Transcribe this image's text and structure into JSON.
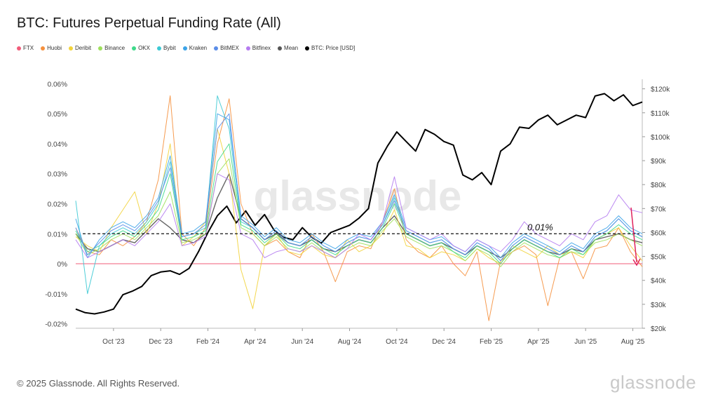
{
  "title": "BTC: Futures Perpetual Funding Rate (All)",
  "footer": "© 2025 Glassnode. All Rights Reserved.",
  "brand": "glassnode",
  "watermark": "glassnode",
  "legend": [
    {
      "label": "FTX",
      "color": "#f25c7a"
    },
    {
      "label": "Huobi",
      "color": "#f5903d"
    },
    {
      "label": "Deribit",
      "color": "#f2d33b"
    },
    {
      "label": "Binance",
      "color": "#9ee05c"
    },
    {
      "label": "OKX",
      "color": "#3fd98a"
    },
    {
      "label": "Bybit",
      "color": "#3cc9d4"
    },
    {
      "label": "Kraken",
      "color": "#3ba3e8"
    },
    {
      "label": "BitMEX",
      "color": "#5b8de8"
    },
    {
      "label": "Bitfinex",
      "color": "#b57cf0"
    },
    {
      "label": "Mean",
      "color": "#555555"
    },
    {
      "label": "BTC: Price [USD]",
      "color": "#000000"
    }
  ],
  "chart_data": {
    "type": "line",
    "x_ticks": [
      "Oct '23",
      "Dec '23",
      "Feb '24",
      "Apr '24",
      "Jun '24",
      "Aug '24",
      "Oct '24",
      "Dec '24",
      "Feb '25",
      "Apr '25",
      "Jun '25",
      "Aug '25"
    ],
    "y_left_ticks": [
      "0.06%",
      "0.05%",
      "0.04%",
      "0.03%",
      "0.02%",
      "0.01%",
      "0%",
      "-0.01%",
      "-0.02%"
    ],
    "y_left_range": [
      -0.0215,
      0.0615
    ],
    "y_right_ticks": [
      "$120k",
      "$110k",
      "$100k",
      "$90k",
      "$80k",
      "$70k",
      "$60k",
      "$50k",
      "$40k",
      "$30k",
      "$20k"
    ],
    "y_right_range": [
      20000,
      124000
    ],
    "reference_line_label": "0.01%",
    "reference_line_value": 0.01,
    "zero_line_value": 0,
    "x_range": [
      0,
      24
    ],
    "series": [
      {
        "name": "BTC: Price [USD]",
        "axis": "right",
        "color": "#000000",
        "x": [
          0,
          0.4,
          0.8,
          1.2,
          1.6,
          2.0,
          2.4,
          2.8,
          3.2,
          3.6,
          4.0,
          4.4,
          4.8,
          5.2,
          5.6,
          6.0,
          6.4,
          6.8,
          7.2,
          7.6,
          8.0,
          8.4,
          8.8,
          9.2,
          9.6,
          10.0,
          10.4,
          10.8,
          11.2,
          11.6,
          12.0,
          12.4,
          12.8,
          13.2,
          13.6,
          14.0,
          14.4,
          14.8,
          15.2,
          15.6,
          16.0,
          16.4,
          16.8,
          17.2,
          17.6,
          18.0,
          18.4,
          18.8,
          19.2,
          19.6,
          20.0,
          20.4,
          20.8,
          21.2,
          21.6,
          22.0,
          22.4,
          22.8,
          23.2,
          23.6,
          24.0
        ],
        "values": [
          28000,
          26500,
          26000,
          26800,
          28000,
          34000,
          35500,
          37500,
          42000,
          43500,
          44000,
          42500,
          45000,
          52000,
          60000,
          67000,
          71000,
          64000,
          69000,
          63000,
          67500,
          61000,
          58000,
          57000,
          62000,
          58000,
          55500,
          60000,
          61500,
          63000,
          66000,
          70000,
          89000,
          96000,
          102000,
          98000,
          94000,
          103000,
          101000,
          98000,
          96500,
          84000,
          82000,
          85000,
          80000,
          94000,
          97000,
          104000,
          103500,
          107000,
          109000,
          105000,
          107000,
          109000,
          108000,
          117000,
          118000,
          115000,
          117500,
          113000,
          114500
        ]
      },
      {
        "name": "Mean",
        "axis": "left",
        "color": "#555555",
        "x": [
          0,
          0.5,
          1,
          1.5,
          2,
          2.5,
          3,
          3.5,
          4,
          4.5,
          5,
          5.5,
          6,
          6.5,
          7,
          7.5,
          8,
          8.5,
          9,
          9.5,
          10,
          10.5,
          11,
          11.5,
          12,
          12.5,
          13,
          13.5,
          14,
          14.5,
          15,
          15.5,
          16,
          16.5,
          17,
          17.5,
          18,
          18.5,
          19,
          19.5,
          20,
          20.5,
          21,
          21.5,
          22,
          22.5,
          23,
          23.5,
          24
        ],
        "values": [
          0.01,
          0.005,
          0.004,
          0.006,
          0.008,
          0.007,
          0.011,
          0.015,
          0.012,
          0.008,
          0.007,
          0.01,
          0.022,
          0.03,
          0.015,
          0.012,
          0.008,
          0.01,
          0.007,
          0.006,
          0.008,
          0.005,
          0.004,
          0.006,
          0.008,
          0.007,
          0.012,
          0.016,
          0.01,
          0.008,
          0.006,
          0.007,
          0.005,
          0.003,
          0.006,
          0.004,
          0.002,
          0.005,
          0.008,
          0.006,
          0.004,
          0.003,
          0.005,
          0.004,
          0.008,
          0.009,
          0.01,
          0.008,
          0.007
        ]
      },
      {
        "name": "Huobi",
        "axis": "left",
        "color": "#f5903d",
        "x": [
          0,
          0.5,
          1,
          1.5,
          2,
          2.5,
          3,
          3.5,
          4,
          4.5,
          5,
          5.5,
          6,
          6.5,
          7,
          7.5,
          8,
          8.5,
          9,
          9.5,
          10,
          10.5,
          11,
          11.5,
          12,
          12.5,
          13,
          13.5,
          14,
          14.5,
          15,
          15.5,
          16,
          16.5,
          17,
          17.5,
          18,
          18.5,
          19,
          19.5,
          20,
          20.5,
          21,
          21.5,
          22,
          22.5,
          23,
          23.5,
          24
        ],
        "values": [
          0.012,
          0.004,
          0.003,
          0.008,
          0.006,
          0.009,
          0.014,
          0.028,
          0.056,
          0.01,
          0.006,
          0.012,
          0.04,
          0.055,
          0.02,
          0.01,
          0.006,
          0.008,
          0.004,
          0.002,
          0.01,
          0.004,
          -0.006,
          0.004,
          0.006,
          0.005,
          0.014,
          0.025,
          0.008,
          0.004,
          0.002,
          0.006,
          0.0,
          -0.004,
          0.004,
          -0.019,
          0.001,
          0.004,
          0.006,
          0.003,
          -0.014,
          0.002,
          0.004,
          -0.005,
          0.005,
          0.006,
          0.012,
          0.004,
          -0.001
        ]
      },
      {
        "name": "Deribit",
        "axis": "left",
        "color": "#f2d33b",
        "x": [
          0,
          0.5,
          1,
          1.5,
          2,
          2.5,
          3,
          3.5,
          4,
          4.5,
          5,
          5.5,
          6,
          6.5,
          7,
          7.5,
          8,
          8.5,
          9,
          9.5,
          10,
          10.5,
          11,
          11.5,
          12,
          12.5,
          13,
          13.5,
          14,
          14.5,
          15,
          15.5,
          16,
          16.5,
          17,
          17.5,
          18,
          18.5,
          19,
          19.5,
          20,
          20.5,
          21,
          21.5,
          22,
          22.5,
          23,
          23.5,
          24
        ],
        "values": [
          0.009,
          0.006,
          0.004,
          0.012,
          0.018,
          0.024,
          0.01,
          0.02,
          0.04,
          0.006,
          0.009,
          0.014,
          0.045,
          0.03,
          -0.002,
          -0.015,
          0.006,
          0.01,
          0.004,
          0.003,
          0.006,
          0.003,
          0.002,
          0.008,
          0.004,
          0.006,
          0.01,
          0.018,
          0.006,
          0.005,
          0.002,
          0.004,
          0.003,
          0.001,
          0.005,
          0.002,
          0.0,
          0.006,
          0.004,
          0.002,
          0.006,
          0.003,
          0.004,
          0.002,
          0.008,
          0.01,
          0.012,
          0.006,
          0.001
        ]
      },
      {
        "name": "Binance",
        "axis": "left",
        "color": "#9ee05c",
        "x": [
          0,
          0.5,
          1,
          1.5,
          2,
          2.5,
          3,
          3.5,
          4,
          4.5,
          5,
          5.5,
          6,
          6.5,
          7,
          7.5,
          8,
          8.5,
          9,
          9.5,
          10,
          10.5,
          11,
          11.5,
          12,
          12.5,
          13,
          13.5,
          14,
          14.5,
          15,
          15.5,
          16,
          16.5,
          17,
          17.5,
          18,
          18.5,
          19,
          19.5,
          20,
          20.5,
          21,
          21.5,
          22,
          22.5,
          23,
          23.5,
          24
        ],
        "values": [
          0.01,
          0.003,
          0.005,
          0.008,
          0.01,
          0.008,
          0.012,
          0.016,
          0.024,
          0.007,
          0.008,
          0.01,
          0.03,
          0.035,
          0.012,
          0.01,
          0.006,
          0.009,
          0.005,
          0.004,
          0.007,
          0.004,
          0.002,
          0.005,
          0.007,
          0.006,
          0.011,
          0.015,
          0.009,
          0.007,
          0.005,
          0.006,
          0.004,
          0.001,
          0.005,
          0.003,
          -0.001,
          0.004,
          0.007,
          0.005,
          0.003,
          0.002,
          0.004,
          0.003,
          0.007,
          0.008,
          0.01,
          0.008,
          0.006
        ]
      },
      {
        "name": "OKX",
        "axis": "left",
        "color": "#3fd98a",
        "x": [
          0,
          0.5,
          1,
          1.5,
          2,
          2.5,
          3,
          3.5,
          4,
          4.5,
          5,
          5.5,
          6,
          6.5,
          7,
          7.5,
          8,
          8.5,
          9,
          9.5,
          10,
          10.5,
          11,
          11.5,
          12,
          12.5,
          13,
          13.5,
          14,
          14.5,
          15,
          15.5,
          16,
          16.5,
          17,
          17.5,
          18,
          18.5,
          19,
          19.5,
          20,
          20.5,
          21,
          21.5,
          22,
          22.5,
          23,
          23.5,
          24
        ],
        "values": [
          0.011,
          0.004,
          0.006,
          0.009,
          0.011,
          0.009,
          0.013,
          0.018,
          0.03,
          0.008,
          0.009,
          0.011,
          0.034,
          0.04,
          0.013,
          0.011,
          0.007,
          0.01,
          0.006,
          0.005,
          0.008,
          0.005,
          0.003,
          0.006,
          0.008,
          0.007,
          0.012,
          0.02,
          0.01,
          0.008,
          0.006,
          0.007,
          0.004,
          0.002,
          0.006,
          0.004,
          0.0,
          0.005,
          0.008,
          0.006,
          0.004,
          0.002,
          0.005,
          0.003,
          0.008,
          0.01,
          0.013,
          0.01,
          0.008
        ]
      },
      {
        "name": "Bybit",
        "axis": "left",
        "color": "#3cc9d4",
        "x": [
          0,
          0.5,
          1,
          1.5,
          2,
          2.5,
          3,
          3.5,
          4,
          4.5,
          5,
          5.5,
          6,
          6.5,
          7,
          7.5,
          8,
          8.5,
          9,
          9.5,
          10,
          10.5,
          11,
          11.5,
          12,
          12.5,
          13,
          13.5,
          14,
          14.5,
          15,
          15.5,
          16,
          16.5,
          17,
          17.5,
          18,
          18.5,
          19,
          19.5,
          20,
          20.5,
          21,
          21.5,
          22,
          22.5,
          23,
          23.5,
          24
        ],
        "values": [
          0.021,
          -0.01,
          0.006,
          0.01,
          0.012,
          0.01,
          0.014,
          0.02,
          0.034,
          0.009,
          0.01,
          0.012,
          0.056,
          0.045,
          0.014,
          0.012,
          0.008,
          0.011,
          0.007,
          0.006,
          0.009,
          0.006,
          0.004,
          0.007,
          0.009,
          0.008,
          0.013,
          0.022,
          0.011,
          0.009,
          0.007,
          0.008,
          0.005,
          0.003,
          0.007,
          0.005,
          0.001,
          0.006,
          0.009,
          0.007,
          0.005,
          0.003,
          0.006,
          0.004,
          0.009,
          0.011,
          0.015,
          0.011,
          0.009
        ]
      },
      {
        "name": "Kraken",
        "axis": "left",
        "color": "#3ba3e8",
        "x": [
          0,
          0.5,
          1,
          1.5,
          2,
          2.5,
          3,
          3.5,
          4,
          4.5,
          5,
          5.5,
          6,
          6.5,
          7,
          7.5,
          8,
          8.5,
          9,
          9.5,
          10,
          10.5,
          11,
          11.5,
          12,
          12.5,
          13,
          13.5,
          14,
          14.5,
          15,
          15.5,
          16,
          16.5,
          17,
          17.5,
          18,
          18.5,
          19,
          19.5,
          20,
          20.5,
          21,
          21.5,
          22,
          22.5,
          23,
          23.5,
          24
        ],
        "values": [
          0.015,
          0.002,
          0.008,
          0.012,
          0.014,
          0.012,
          0.016,
          0.022,
          0.036,
          0.01,
          0.011,
          0.014,
          0.05,
          0.048,
          0.016,
          0.013,
          0.009,
          0.012,
          0.008,
          0.007,
          0.01,
          0.007,
          0.005,
          0.008,
          0.01,
          0.009,
          0.014,
          0.023,
          0.012,
          0.01,
          0.008,
          0.009,
          0.006,
          0.004,
          0.008,
          0.006,
          0.002,
          0.007,
          0.01,
          0.008,
          0.006,
          0.004,
          0.007,
          0.005,
          0.01,
          0.012,
          0.016,
          0.012,
          0.01
        ]
      },
      {
        "name": "BitMEX",
        "axis": "left",
        "color": "#5b8de8",
        "x": [
          0,
          0.5,
          1,
          1.5,
          2,
          2.5,
          3,
          3.5,
          4,
          4.5,
          5,
          5.5,
          6,
          6.5,
          7,
          7.5,
          8,
          8.5,
          9,
          9.5,
          10,
          10.5,
          11,
          11.5,
          12,
          12.5,
          13,
          13.5,
          14,
          14.5,
          15,
          15.5,
          16,
          16.5,
          17,
          17.5,
          18,
          18.5,
          19,
          19.5,
          20,
          20.5,
          21,
          21.5,
          22,
          22.5,
          23,
          23.5,
          24
        ],
        "values": [
          0.012,
          0.003,
          0.007,
          0.011,
          0.013,
          0.011,
          0.015,
          0.021,
          0.032,
          0.009,
          0.01,
          0.013,
          0.045,
          0.05,
          0.015,
          0.012,
          0.008,
          0.011,
          0.007,
          0.006,
          0.009,
          0.006,
          0.004,
          0.007,
          0.009,
          0.008,
          0.013,
          0.021,
          0.011,
          0.009,
          0.007,
          0.008,
          0.005,
          0.003,
          0.007,
          0.005,
          0.001,
          0.006,
          0.009,
          0.007,
          0.005,
          0.003,
          0.006,
          0.004,
          0.009,
          0.011,
          0.015,
          0.011,
          0.009
        ]
      },
      {
        "name": "Bitfinex",
        "axis": "left",
        "color": "#b57cf0",
        "x": [
          0,
          0.5,
          1,
          1.5,
          2,
          2.5,
          3,
          3.5,
          4,
          4.5,
          5,
          5.5,
          6,
          6.5,
          7,
          7.5,
          8,
          8.5,
          9,
          9.5,
          10,
          10.5,
          11,
          11.5,
          12,
          12.5,
          13,
          13.5,
          14,
          14.5,
          15,
          15.5,
          16,
          16.5,
          17,
          17.5,
          18,
          18.5,
          19,
          19.5,
          20,
          20.5,
          21,
          21.5,
          22,
          22.5,
          23,
          23.5,
          24
        ],
        "values": [
          0.008,
          0.002,
          0.004,
          0.006,
          0.008,
          0.006,
          0.01,
          0.014,
          0.02,
          0.006,
          0.007,
          0.009,
          0.03,
          0.028,
          0.01,
          0.008,
          0.002,
          0.004,
          0.005,
          0.004,
          0.006,
          0.004,
          0.002,
          0.005,
          0.01,
          0.008,
          0.014,
          0.029,
          0.012,
          0.01,
          0.008,
          0.01,
          0.006,
          0.004,
          0.008,
          0.006,
          0.004,
          0.008,
          0.014,
          0.01,
          0.008,
          0.006,
          0.01,
          0.008,
          0.014,
          0.016,
          0.023,
          0.018,
          0.017
        ]
      },
      {
        "name": "FTX",
        "axis": "left",
        "color": "#f25c7a",
        "x": [
          0,
          24
        ],
        "values": [
          0,
          0
        ]
      }
    ]
  }
}
